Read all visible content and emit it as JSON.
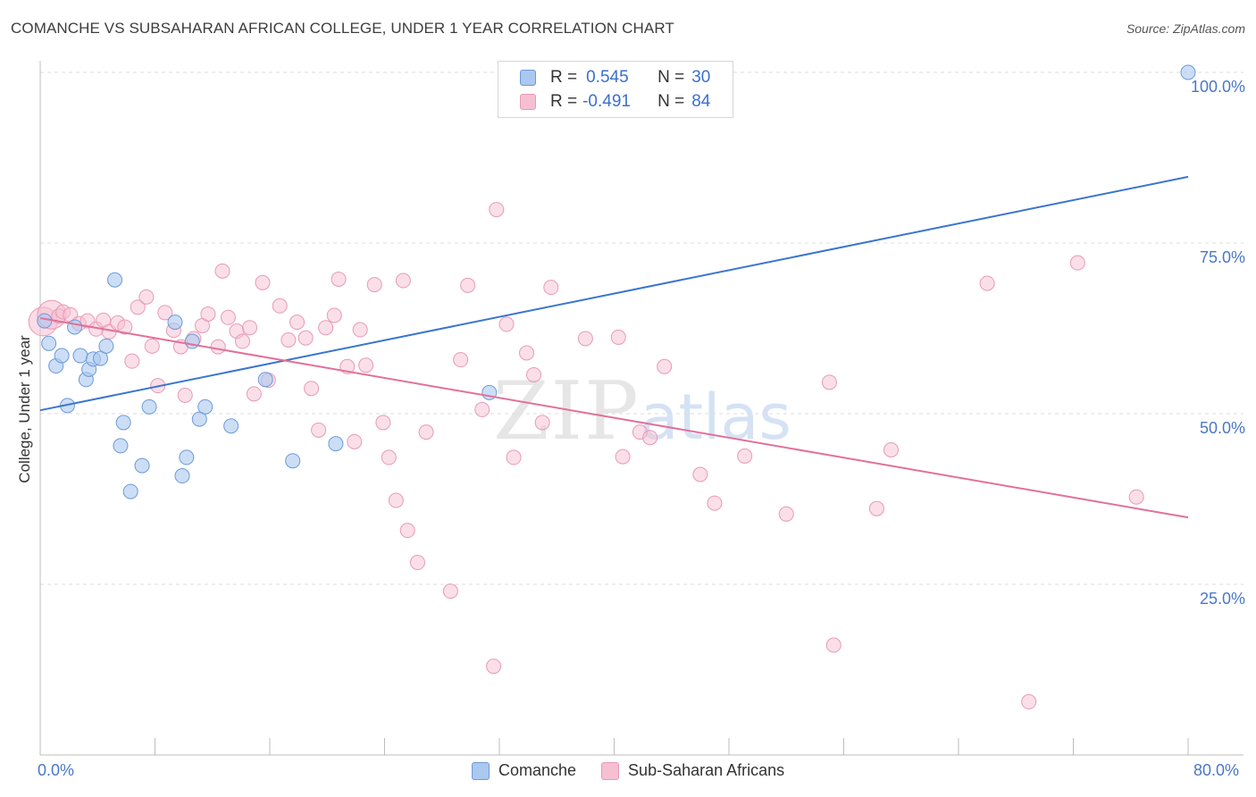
{
  "header": {
    "title": "COMANCHE VS SUBSAHARAN AFRICAN COLLEGE, UNDER 1 YEAR CORRELATION CHART",
    "source": "Source: ZipAtlas.com"
  },
  "watermark": {
    "zip": "ZIP",
    "atlas": "atlas"
  },
  "legend": {
    "rows": [
      {
        "r_label": "R =",
        "r_value": "0.545",
        "n_label": "N =",
        "n_value": "30"
      },
      {
        "r_label": "R =",
        "r_value": "-0.491",
        "n_label": "N =",
        "n_value": "84"
      }
    ]
  },
  "colors": {
    "series1_fill": "#aac8f0",
    "series1_stroke": "#6c9ad8",
    "series1_line": "#3a75cf",
    "series2_fill": "#f6c0d2",
    "series2_stroke": "#e89ab5",
    "series2_line": "#e2709a",
    "tick_label": "#4a77c9",
    "grid": "#dddddd"
  },
  "chart_data": {
    "type": "scatter",
    "title": "COMANCHE VS SUBSAHARAN AFRICAN COLLEGE, UNDER 1 YEAR CORRELATION CHART",
    "xlabel": "",
    "ylabel": "College, Under 1 year",
    "xlim": [
      0,
      80
    ],
    "ylim": [
      0,
      102
    ],
    "x_tick_labels": [
      "0.0%",
      "80.0%"
    ],
    "y_tick_labels": [
      "25.0%",
      "50.0%",
      "75.0%",
      "100.0%"
    ],
    "y_tick_values": [
      25,
      50,
      75,
      100
    ],
    "series": [
      {
        "name": "Comanche",
        "r": 0.545,
        "n": 30,
        "trend": {
          "x": [
            0,
            80
          ],
          "y": [
            50.5,
            84.7
          ]
        },
        "points": [
          {
            "x": 0.3,
            "y": 63.6
          },
          {
            "x": 0.6,
            "y": 60.3
          },
          {
            "x": 1.1,
            "y": 57.0
          },
          {
            "x": 1.5,
            "y": 58.5
          },
          {
            "x": 1.9,
            "y": 51.2
          },
          {
            "x": 2.4,
            "y": 62.7
          },
          {
            "x": 2.8,
            "y": 58.5
          },
          {
            "x": 3.2,
            "y": 55.0
          },
          {
            "x": 3.4,
            "y": 56.5
          },
          {
            "x": 3.7,
            "y": 58.0
          },
          {
            "x": 4.2,
            "y": 58.1
          },
          {
            "x": 4.6,
            "y": 59.9
          },
          {
            "x": 5.2,
            "y": 69.6
          },
          {
            "x": 5.6,
            "y": 45.3
          },
          {
            "x": 5.8,
            "y": 48.7
          },
          {
            "x": 6.3,
            "y": 38.6
          },
          {
            "x": 7.1,
            "y": 42.4
          },
          {
            "x": 7.6,
            "y": 51.0
          },
          {
            "x": 9.4,
            "y": 63.4
          },
          {
            "x": 9.9,
            "y": 40.9
          },
          {
            "x": 10.2,
            "y": 43.6
          },
          {
            "x": 10.6,
            "y": 60.6
          },
          {
            "x": 11.1,
            "y": 49.2
          },
          {
            "x": 11.5,
            "y": 51.0
          },
          {
            "x": 13.3,
            "y": 48.2
          },
          {
            "x": 15.7,
            "y": 55.0
          },
          {
            "x": 17.6,
            "y": 43.1
          },
          {
            "x": 20.6,
            "y": 45.6
          },
          {
            "x": 31.3,
            "y": 53.1
          },
          {
            "x": 80.0,
            "y": 100.0
          }
        ]
      },
      {
        "name": "Sub-Saharan Africans",
        "r": -0.491,
        "n": 84,
        "trend": {
          "x": [
            0,
            80
          ],
          "y": [
            64.0,
            34.8
          ]
        },
        "points": [
          {
            "x": 0.2,
            "y": 63.5,
            "big": true
          },
          {
            "x": 0.8,
            "y": 64.5,
            "big": true
          },
          {
            "x": 1.3,
            "y": 64.3
          },
          {
            "x": 1.6,
            "y": 64.9
          },
          {
            "x": 2.1,
            "y": 64.5
          },
          {
            "x": 2.7,
            "y": 63.2
          },
          {
            "x": 3.3,
            "y": 63.6
          },
          {
            "x": 3.9,
            "y": 62.4
          },
          {
            "x": 4.4,
            "y": 63.7
          },
          {
            "x": 4.8,
            "y": 62.0
          },
          {
            "x": 5.4,
            "y": 63.3
          },
          {
            "x": 5.9,
            "y": 62.7
          },
          {
            "x": 6.4,
            "y": 57.7
          },
          {
            "x": 6.8,
            "y": 65.6
          },
          {
            "x": 7.4,
            "y": 67.1
          },
          {
            "x": 7.8,
            "y": 59.9
          },
          {
            "x": 8.2,
            "y": 54.1
          },
          {
            "x": 8.7,
            "y": 64.8
          },
          {
            "x": 9.3,
            "y": 62.2
          },
          {
            "x": 9.8,
            "y": 59.8
          },
          {
            "x": 10.1,
            "y": 52.7
          },
          {
            "x": 10.7,
            "y": 61.0
          },
          {
            "x": 11.3,
            "y": 62.9
          },
          {
            "x": 11.7,
            "y": 64.6
          },
          {
            "x": 12.4,
            "y": 59.8
          },
          {
            "x": 12.7,
            "y": 70.9
          },
          {
            "x": 13.1,
            "y": 64.1
          },
          {
            "x": 13.7,
            "y": 62.1
          },
          {
            "x": 14.1,
            "y": 60.6
          },
          {
            "x": 14.6,
            "y": 62.6
          },
          {
            "x": 14.9,
            "y": 52.9
          },
          {
            "x": 15.5,
            "y": 69.2
          },
          {
            "x": 15.9,
            "y": 54.9
          },
          {
            "x": 16.7,
            "y": 65.8
          },
          {
            "x": 17.3,
            "y": 60.8
          },
          {
            "x": 17.9,
            "y": 63.4
          },
          {
            "x": 18.5,
            "y": 61.1
          },
          {
            "x": 18.9,
            "y": 53.7
          },
          {
            "x": 19.4,
            "y": 47.6
          },
          {
            "x": 19.9,
            "y": 62.6
          },
          {
            "x": 20.5,
            "y": 64.4
          },
          {
            "x": 20.8,
            "y": 69.7
          },
          {
            "x": 21.4,
            "y": 56.9
          },
          {
            "x": 21.9,
            "y": 45.9
          },
          {
            "x": 22.3,
            "y": 62.3
          },
          {
            "x": 22.7,
            "y": 57.1
          },
          {
            "x": 23.3,
            "y": 68.9
          },
          {
            "x": 23.9,
            "y": 48.7
          },
          {
            "x": 24.3,
            "y": 43.6
          },
          {
            "x": 24.8,
            "y": 37.3
          },
          {
            "x": 25.3,
            "y": 69.5
          },
          {
            "x": 25.6,
            "y": 32.9
          },
          {
            "x": 26.3,
            "y": 28.2
          },
          {
            "x": 26.9,
            "y": 47.3
          },
          {
            "x": 28.6,
            "y": 24.0
          },
          {
            "x": 29.3,
            "y": 57.9
          },
          {
            "x": 29.8,
            "y": 68.8
          },
          {
            "x": 30.8,
            "y": 50.6
          },
          {
            "x": 31.6,
            "y": 13.0
          },
          {
            "x": 31.8,
            "y": 79.9
          },
          {
            "x": 32.5,
            "y": 63.1
          },
          {
            "x": 33.0,
            "y": 43.6
          },
          {
            "x": 33.9,
            "y": 58.9
          },
          {
            "x": 34.4,
            "y": 55.7
          },
          {
            "x": 35.0,
            "y": 48.7
          },
          {
            "x": 35.6,
            "y": 68.5
          },
          {
            "x": 38.0,
            "y": 61.0
          },
          {
            "x": 40.3,
            "y": 61.2
          },
          {
            "x": 40.6,
            "y": 43.7
          },
          {
            "x": 41.8,
            "y": 47.3
          },
          {
            "x": 42.5,
            "y": 46.5
          },
          {
            "x": 43.5,
            "y": 56.9
          },
          {
            "x": 46.0,
            "y": 41.1
          },
          {
            "x": 47.0,
            "y": 36.9
          },
          {
            "x": 49.1,
            "y": 43.8
          },
          {
            "x": 52.0,
            "y": 35.3
          },
          {
            "x": 55.0,
            "y": 54.6
          },
          {
            "x": 55.3,
            "y": 16.1
          },
          {
            "x": 58.3,
            "y": 36.1
          },
          {
            "x": 59.3,
            "y": 44.7
          },
          {
            "x": 66.0,
            "y": 69.1
          },
          {
            "x": 72.3,
            "y": 72.1
          },
          {
            "x": 76.4,
            "y": 37.8
          },
          {
            "x": 68.9,
            "y": 7.8
          }
        ]
      }
    ]
  }
}
